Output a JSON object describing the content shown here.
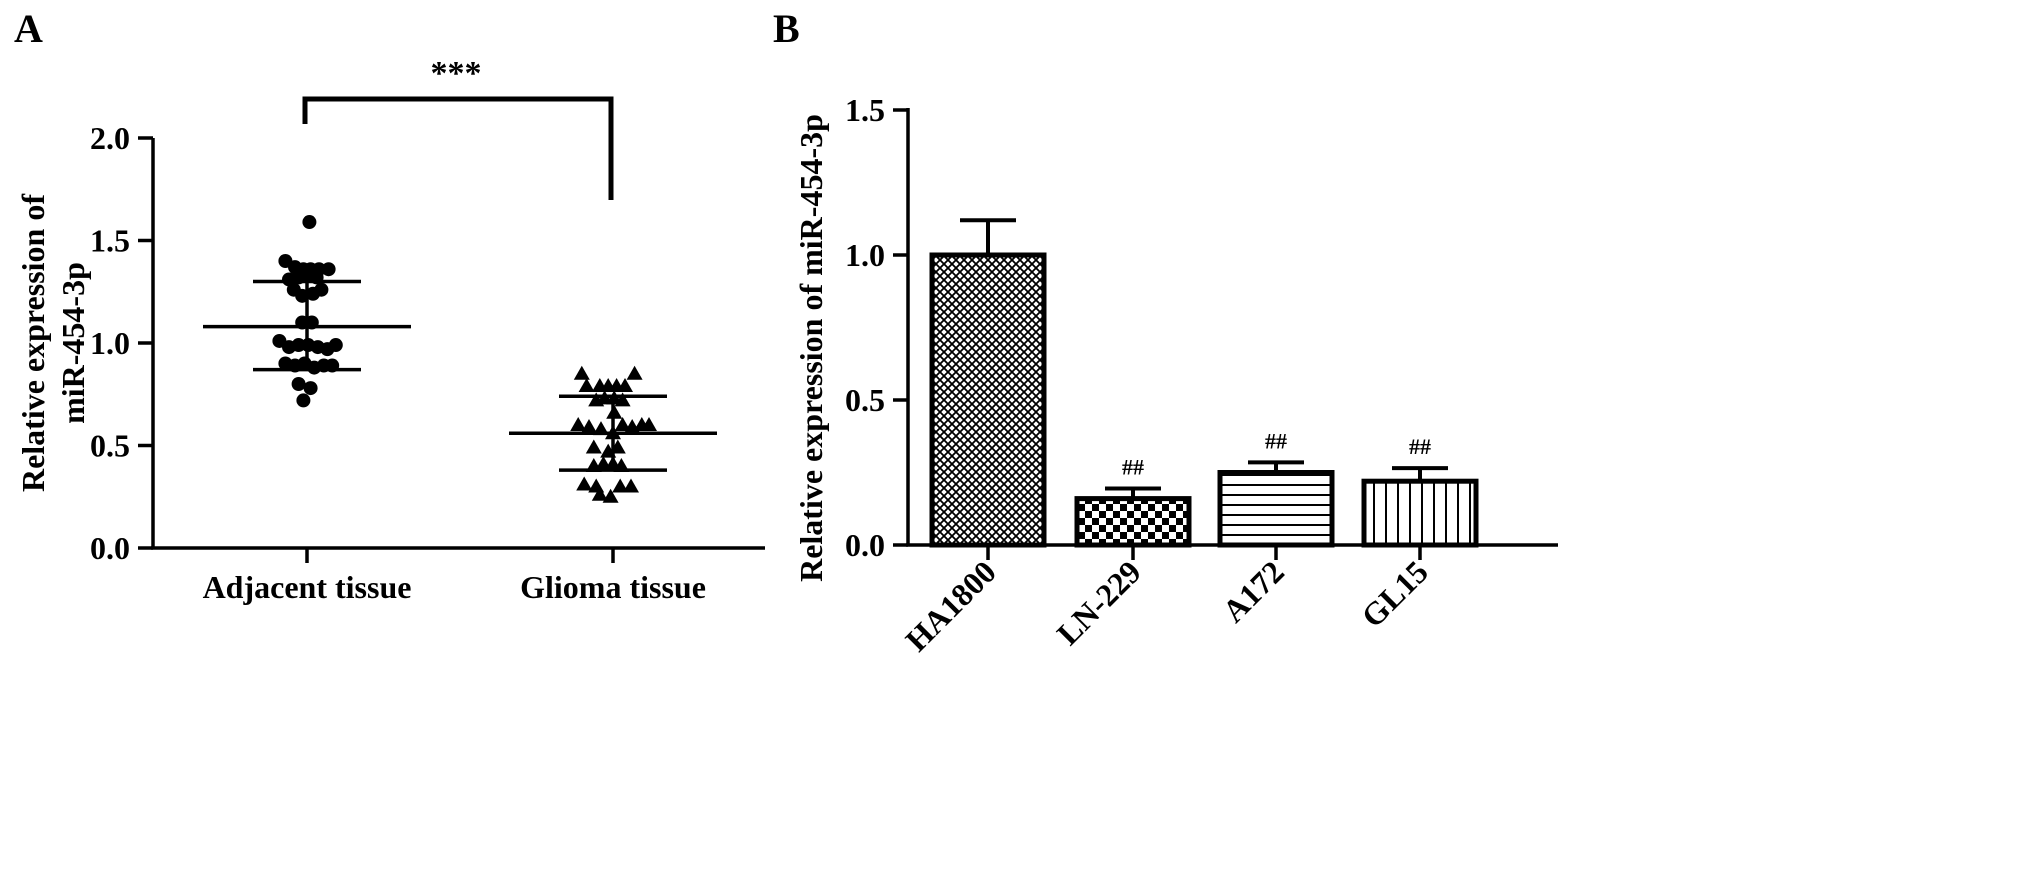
{
  "panels": {
    "a_label": "A",
    "b_label": "B"
  },
  "chart_data": [
    {
      "type": "scatter",
      "panel": "A",
      "ylabel_line1": "Relative expression of",
      "ylabel_line2": "miR-454-3p",
      "ylim": [
        0,
        2.0
      ],
      "yticks": [
        "0.0",
        "0.5",
        "1.0",
        "1.5",
        "2.0"
      ],
      "categories": [
        "Adjacent tissue",
        "Glioma tissue"
      ],
      "significance": "***",
      "series": [
        {
          "category": "Adjacent tissue",
          "marker": "circle",
          "mean": 1.08,
          "sd_upper": 1.3,
          "sd_lower": 0.87,
          "points": [
            {
              "dx": 0.2,
              "y": 1.59
            },
            {
              "dx": -1.8,
              "y": 1.4
            },
            {
              "dx": -1.0,
              "y": 1.37
            },
            {
              "dx": -0.3,
              "y": 1.36
            },
            {
              "dx": 0.3,
              "y": 1.36
            },
            {
              "dx": 1.0,
              "y": 1.36
            },
            {
              "dx": 1.8,
              "y": 1.36
            },
            {
              "dx": -1.5,
              "y": 1.31
            },
            {
              "dx": -0.7,
              "y": 1.32
            },
            {
              "dx": 0.0,
              "y": 1.33
            },
            {
              "dx": 0.8,
              "y": 1.32
            },
            {
              "dx": -1.1,
              "y": 1.26
            },
            {
              "dx": -0.4,
              "y": 1.23
            },
            {
              "dx": 0.5,
              "y": 1.24
            },
            {
              "dx": 1.2,
              "y": 1.26
            },
            {
              "dx": -0.4,
              "y": 1.1
            },
            {
              "dx": 0.4,
              "y": 1.1
            },
            {
              "dx": -2.3,
              "y": 1.01
            },
            {
              "dx": -1.5,
              "y": 0.98
            },
            {
              "dx": -0.7,
              "y": 0.99
            },
            {
              "dx": 0.1,
              "y": 0.99
            },
            {
              "dx": 0.9,
              "y": 0.98
            },
            {
              "dx": 1.7,
              "y": 0.97
            },
            {
              "dx": 2.4,
              "y": 0.99
            },
            {
              "dx": -1.8,
              "y": 0.9
            },
            {
              "dx": -1.0,
              "y": 0.89
            },
            {
              "dx": -0.2,
              "y": 0.9
            },
            {
              "dx": 0.6,
              "y": 0.88
            },
            {
              "dx": 1.4,
              "y": 0.89
            },
            {
              "dx": 2.1,
              "y": 0.89
            },
            {
              "dx": -0.7,
              "y": 0.8
            },
            {
              "dx": 0.3,
              "y": 0.78
            },
            {
              "dx": -0.3,
              "y": 0.72
            }
          ]
        },
        {
          "category": "Glioma tissue",
          "marker": "triangle",
          "mean": 0.56,
          "sd_upper": 0.74,
          "sd_lower": 0.38,
          "points": [
            {
              "dx": -2.6,
              "y": 0.85
            },
            {
              "dx": 1.8,
              "y": 0.85
            },
            {
              "dx": -2.2,
              "y": 0.79
            },
            {
              "dx": -1.1,
              "y": 0.79
            },
            {
              "dx": -0.4,
              "y": 0.79
            },
            {
              "dx": 0.3,
              "y": 0.79
            },
            {
              "dx": 1.0,
              "y": 0.79
            },
            {
              "dx": -1.4,
              "y": 0.72
            },
            {
              "dx": -0.7,
              "y": 0.73
            },
            {
              "dx": 0.1,
              "y": 0.73
            },
            {
              "dx": 0.8,
              "y": 0.72
            },
            {
              "dx": 0.1,
              "y": 0.66
            },
            {
              "dx": -2.9,
              "y": 0.6
            },
            {
              "dx": -2.0,
              "y": 0.59
            },
            {
              "dx": -1.0,
              "y": 0.58
            },
            {
              "dx": 0.0,
              "y": 0.56
            },
            {
              "dx": 0.8,
              "y": 0.6
            },
            {
              "dx": 1.6,
              "y": 0.59
            },
            {
              "dx": 2.4,
              "y": 0.6
            },
            {
              "dx": 3.0,
              "y": 0.6
            },
            {
              "dx": -1.6,
              "y": 0.49
            },
            {
              "dx": -0.4,
              "y": 0.47
            },
            {
              "dx": 0.4,
              "y": 0.49
            },
            {
              "dx": -1.6,
              "y": 0.4
            },
            {
              "dx": -0.8,
              "y": 0.41
            },
            {
              "dx": 0.0,
              "y": 0.41
            },
            {
              "dx": 0.7,
              "y": 0.4
            },
            {
              "dx": -2.4,
              "y": 0.31
            },
            {
              "dx": -1.4,
              "y": 0.3
            },
            {
              "dx": 0.6,
              "y": 0.3
            },
            {
              "dx": 1.5,
              "y": 0.3
            },
            {
              "dx": -1.1,
              "y": 0.26
            },
            {
              "dx": -0.2,
              "y": 0.25
            }
          ]
        }
      ]
    },
    {
      "type": "bar",
      "panel": "B",
      "ylabel": "Relative expression of miR-454-3p",
      "ylim": [
        0,
        1.5
      ],
      "yticks": [
        "0.0",
        "0.5",
        "1.0",
        "1.5"
      ],
      "categories": [
        "HA1800",
        "LN-229",
        "A172",
        "GL15"
      ],
      "values": [
        1.0,
        0.16,
        0.25,
        0.22
      ],
      "errors": [
        0.12,
        0.035,
        0.035,
        0.045
      ],
      "annotations": [
        "",
        "##",
        "##",
        "##"
      ],
      "patterns": [
        "crosshatch-fine",
        "checker",
        "horizontal-lines",
        "vertical-lines"
      ]
    }
  ]
}
